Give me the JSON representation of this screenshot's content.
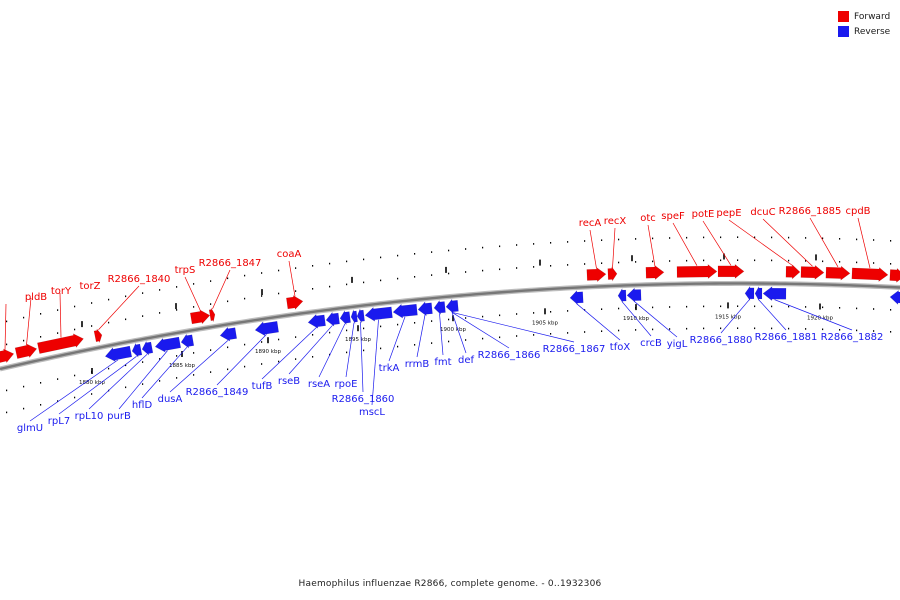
{
  "colors": {
    "forward": "#ee0000",
    "reverse": "#1a1aee",
    "backbone": "#777777",
    "ticks": "#000000"
  },
  "legend": [
    {
      "label": "Forward",
      "color": "#ee0000"
    },
    {
      "label": "Reverse",
      "color": "#1a1aee"
    }
  ],
  "caption": "Haemophilus influenzae R2866, complete genome. - 0..1932306",
  "scale_labels": [
    "1880 kbp",
    "1885 kbp",
    "1890 kbp",
    "1895 kbp",
    "1900 kbp",
    "1905 kbp",
    "1910 kbp",
    "1915 kbp",
    "1920 kbp"
  ],
  "forward_genes": [
    "pldB",
    "torY",
    "torZ",
    "R2866_1840",
    "trpS",
    "R2866_1847",
    "coaA",
    "recA",
    "recX",
    "otc",
    "speF",
    "potE",
    "pepE",
    "dcuC",
    "R2866_1885",
    "cpdB"
  ],
  "reverse_genes": [
    "glmU",
    "rpL7",
    "rpL10",
    "purB",
    "hflD",
    "dusA",
    "R2866_1849",
    "tufB",
    "rseB",
    "rseA",
    "rpoE",
    "R2866_1860",
    "mscL",
    "trkA",
    "rrmB",
    "fmt",
    "def",
    "R2866_1866",
    "R2866_1867",
    "tfoX",
    "crcB",
    "yigL",
    "R2866_1880",
    "R2866_1881",
    "R2866_1882"
  ]
}
